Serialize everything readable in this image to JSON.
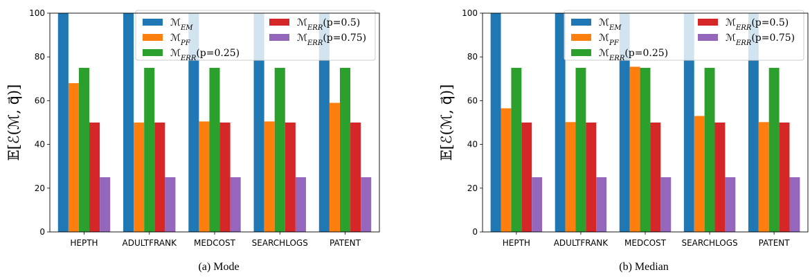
{
  "chart_data": [
    {
      "type": "bar",
      "caption": "(a) Mode",
      "ylabel": "𝔼[ℰ(ℳ, q⃗)]",
      "ylim": [
        0,
        100
      ],
      "yticks": [
        "0",
        "20",
        "40",
        "60",
        "80",
        "100"
      ],
      "categories": [
        "HEPTH",
        "ADULTFRANK",
        "MEDCOST",
        "SEARCHLOGS",
        "PATENT"
      ],
      "legend_position": "top-right",
      "series": [
        {
          "name": "ℳ_EM",
          "color": "#1f77b4",
          "values": [
            100,
            100,
            100,
            100,
            100
          ]
        },
        {
          "name": "ℳ_PF",
          "color": "#ff7f0e",
          "values": [
            68,
            50,
            50.5,
            50.5,
            59
          ]
        },
        {
          "name": "ℳ_ERR(p=0.25)",
          "color": "#2ca02c",
          "values": [
            75,
            75,
            75,
            75,
            75
          ]
        },
        {
          "name": "ℳ_ERR(p=0.5)",
          "color": "#d62728",
          "values": [
            50,
            50,
            50,
            50,
            50
          ]
        },
        {
          "name": "ℳ_ERR(p=0.75)",
          "color": "#9467bd",
          "values": [
            25,
            25,
            25,
            25,
            25
          ]
        }
      ]
    },
    {
      "type": "bar",
      "caption": "(b) Median",
      "ylabel": "𝔼[ℰ(ℳ, q⃗)]",
      "ylim": [
        0,
        100
      ],
      "yticks": [
        "0",
        "20",
        "40",
        "60",
        "80",
        "100"
      ],
      "categories": [
        "HEPTH",
        "ADULTFRANK",
        "MEDCOST",
        "SEARCHLOGS",
        "PATENT"
      ],
      "legend_position": "top-right",
      "series": [
        {
          "name": "ℳ_EM",
          "color": "#1f77b4",
          "values": [
            100,
            100,
            100,
            100,
            100
          ]
        },
        {
          "name": "ℳ_PF",
          "color": "#ff7f0e",
          "values": [
            56.5,
            50.2,
            75.5,
            53,
            50.2
          ]
        },
        {
          "name": "ℳ_ERR(p=0.25)",
          "color": "#2ca02c",
          "values": [
            75,
            75,
            75,
            75,
            75
          ]
        },
        {
          "name": "ℳ_ERR(p=0.5)",
          "color": "#d62728",
          "values": [
            50,
            50,
            50,
            50,
            50
          ]
        },
        {
          "name": "ℳ_ERR(p=0.75)",
          "color": "#9467bd",
          "values": [
            25,
            25,
            25,
            25,
            25
          ]
        }
      ]
    }
  ]
}
